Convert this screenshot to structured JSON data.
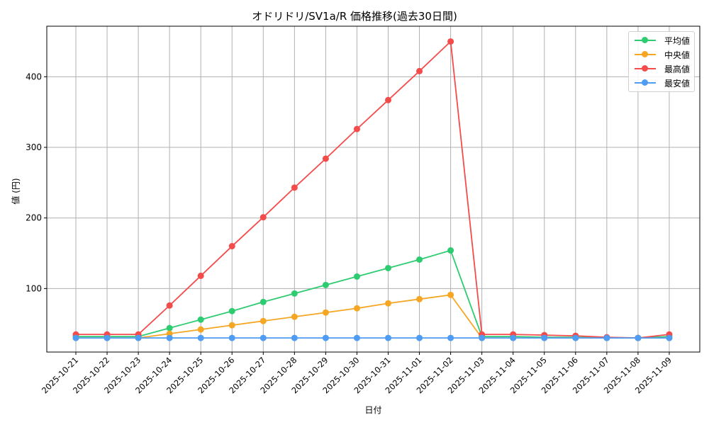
{
  "chart_data": {
    "type": "line",
    "title": "オドリドリ/SV1a/R 価格推移(過去30日間)",
    "xlabel": "日付",
    "ylabel": "値 (円)",
    "ylim": [
      10,
      470
    ],
    "yticks": [
      100,
      200,
      300,
      400
    ],
    "grid": true,
    "legend_position": "upper right",
    "categories": [
      "2025-10-21",
      "2025-10-22",
      "2025-10-23",
      "2025-10-24",
      "2025-10-25",
      "2025-10-26",
      "2025-10-27",
      "2025-10-28",
      "2025-10-29",
      "2025-10-30",
      "2025-10-31",
      "2025-11-01",
      "2025-11-02",
      "2025-11-03",
      "2025-11-04",
      "2025-11-05",
      "2025-11-06",
      "2025-11-07",
      "2025-11-08",
      "2025-11-09"
    ],
    "series": [
      {
        "name": "平均値",
        "color": "#2ecc71",
        "values": [
          32,
          32,
          32,
          44,
          56,
          68,
          81,
          93,
          105,
          117,
          129,
          141,
          154,
          32,
          32,
          31,
          31,
          30,
          30,
          32
        ]
      },
      {
        "name": "中央値",
        "color": "#f5a623",
        "values": [
          30,
          30,
          30,
          36,
          42,
          48,
          54,
          60,
          66,
          72,
          79,
          85,
          91,
          30,
          30,
          30,
          30,
          30,
          30,
          30
        ]
      },
      {
        "name": "最高値",
        "color": "#f44b4b",
        "values": [
          35,
          35,
          35,
          76,
          118,
          160,
          201,
          243,
          284,
          326,
          367,
          408,
          450,
          35,
          35,
          34,
          33,
          31,
          30,
          35
        ]
      },
      {
        "name": "最安値",
        "color": "#4f9cf5",
        "values": [
          30,
          30,
          30,
          30,
          30,
          30,
          30,
          30,
          30,
          30,
          30,
          30,
          30,
          30,
          30,
          30,
          30,
          30,
          30,
          30
        ]
      }
    ]
  }
}
